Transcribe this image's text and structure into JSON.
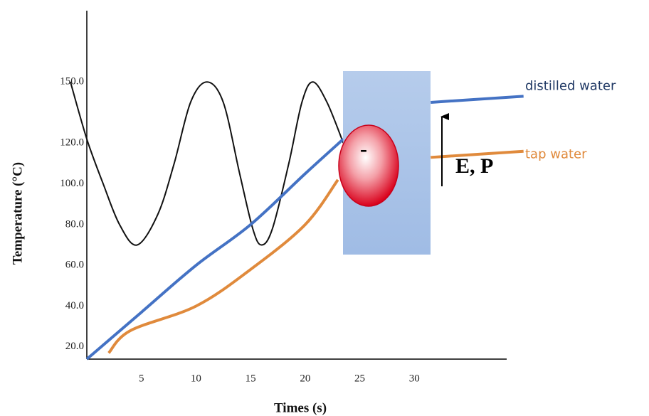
{
  "chart_data": {
    "type": "line",
    "x_label": "Times (s)",
    "y_label": "Temperature (°C)",
    "xlim": [
      0,
      38
    ],
    "ylim": [
      14,
      185
    ],
    "xticks": [
      5,
      10,
      15,
      20,
      25,
      30
    ],
    "yticks": [
      {
        "value": 20,
        "label": "20.0"
      },
      {
        "value": 40,
        "label": "40.0"
      },
      {
        "value": 60,
        "label": "60.0"
      },
      {
        "value": 80,
        "label": "80.0"
      },
      {
        "value": 100,
        "label": "100.0"
      },
      {
        "value": 120,
        "label": "120.0"
      },
      {
        "value": 150,
        "label": "150.0"
      }
    ],
    "series": [
      {
        "color": "#111111",
        "x": [
          -1.5,
          0,
          1.5,
          3,
          4.6,
          6.5,
          8,
          9.5,
          11,
          12.5,
          14,
          15.2,
          16,
          17,
          18.5,
          19.7,
          20.7,
          22,
          23.5
        ],
        "values": [
          150,
          122,
          100,
          80,
          70,
          85,
          110,
          140,
          150,
          140,
          105,
          78,
          70,
          78,
          110,
          140,
          150,
          140,
          120
        ]
      },
      {
        "name": "distilled water",
        "color": "#4472c4",
        "label_color": "#1f3864",
        "x": [
          0,
          5,
          10,
          15,
          20,
          23.5,
          27,
          31.5,
          40
        ],
        "values": [
          14,
          37,
          60,
          80,
          105,
          122,
          null,
          140,
          143
        ]
      },
      {
        "name": "tap water",
        "color": "#e08a3c",
        "label_color": "#e08a3c",
        "x": [
          2,
          4,
          10,
          15,
          20,
          23,
          27,
          31.5,
          40
        ],
        "values": [
          17,
          28,
          40,
          58,
          80,
          102,
          null,
          113,
          116
        ]
      }
    ],
    "annotations": {
      "charge": "-",
      "arrow": "E, P"
    }
  }
}
